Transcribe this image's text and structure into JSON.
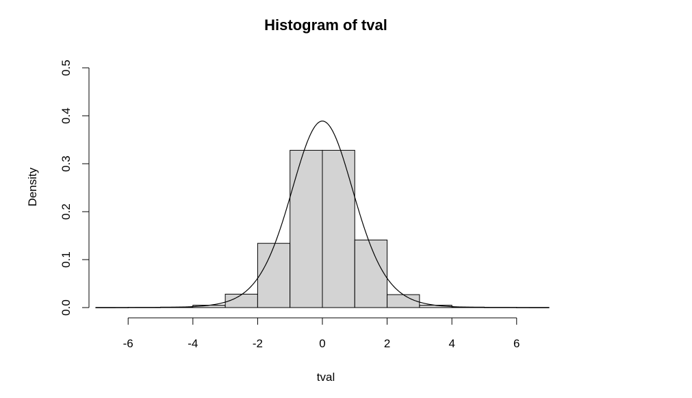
{
  "chart_data": {
    "type": "bar",
    "title": "Histogram of tval",
    "xlabel": "tval",
    "ylabel": "Density",
    "xlim": [
      -7.4,
      7.4
    ],
    "ylim": [
      0,
      0.5
    ],
    "x_ticks": [
      -6,
      -4,
      -2,
      0,
      2,
      4,
      6
    ],
    "y_ticks": [
      0.0,
      0.1,
      0.2,
      0.3,
      0.4,
      0.5
    ],
    "x_tick_labels": [
      "-6",
      "-4",
      "-2",
      "0",
      "2",
      "4",
      "6"
    ],
    "y_tick_labels": [
      "0.0",
      "0.1",
      "0.2",
      "0.3",
      "0.4",
      "0.5"
    ],
    "bins": [
      {
        "x0": -7,
        "x1": -6,
        "density": 0.0003
      },
      {
        "x0": -6,
        "x1": -5,
        "density": 0.0005
      },
      {
        "x0": -5,
        "x1": -4,
        "density": 0.001
      },
      {
        "x0": -4,
        "x1": -3,
        "density": 0.005
      },
      {
        "x0": -3,
        "x1": -2,
        "density": 0.028
      },
      {
        "x0": -2,
        "x1": -1,
        "density": 0.134
      },
      {
        "x0": -1,
        "x1": 0,
        "density": 0.328
      },
      {
        "x0": 0,
        "x1": 1,
        "density": 0.328
      },
      {
        "x0": 1,
        "x1": 2,
        "density": 0.141
      },
      {
        "x0": 2,
        "x1": 3,
        "density": 0.027
      },
      {
        "x0": 3,
        "x1": 4,
        "density": 0.005
      },
      {
        "x0": 4,
        "x1": 5,
        "density": 0.001
      },
      {
        "x0": 5,
        "x1": 6,
        "density": 0.0005
      },
      {
        "x0": 6,
        "x1": 7,
        "density": 0.0003
      }
    ],
    "curve": {
      "type": "density",
      "peak_x": 0,
      "peak_y": 0.389
    },
    "bar_fill": "#d3d3d3",
    "bar_stroke": "#000000",
    "grid": false
  }
}
